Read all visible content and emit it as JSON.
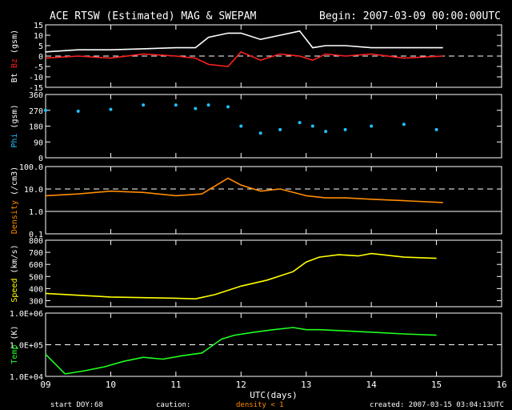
{
  "header": {
    "title": "ACE RTSW (Estimated) MAG & SWEPAM",
    "begin": "Begin: 2007-03-09 00:00:00UTC"
  },
  "footer": {
    "start_doy_label": "start DOY:",
    "start_doy_value": "68",
    "caution_label": "caution:",
    "caution_text": "density < 1",
    "caution_color": "#ff8c00",
    "created": "created: 2007-03-15 03:04:13UTC"
  },
  "colors": {
    "bt": "#ffffff",
    "bz": "#ff2020",
    "phi": "#20c0ff",
    "density": "#ff8c00",
    "speed": "#ffff00",
    "temp": "#20ff20"
  },
  "chart_data": [
    {
      "type": "line",
      "ylabel_parts": [
        "Bt",
        "Bz",
        "(gsm)"
      ],
      "yticks": [
        "15",
        "10",
        "5",
        "0",
        "-5",
        "-10",
        "-15"
      ],
      "ylim": [
        -15,
        15
      ],
      "dashed_reference_y": 0,
      "x": [
        9.0,
        9.5,
        10.0,
        10.5,
        11.0,
        11.3,
        11.5,
        11.8,
        12.0,
        12.3,
        12.6,
        12.9,
        13.1,
        13.3,
        13.6,
        14.0,
        14.5,
        15.1
      ],
      "series": [
        {
          "name": "Bt",
          "values": [
            2,
            3,
            3,
            3.5,
            4,
            4,
            9,
            11,
            11,
            8,
            10,
            12,
            4,
            5,
            5,
            4,
            4,
            4
          ]
        },
        {
          "name": "Bz",
          "values": [
            -1,
            0,
            -1,
            1,
            0,
            -1,
            -4,
            -5,
            2,
            -2,
            1,
            0,
            -2,
            1,
            0,
            1,
            -1,
            0
          ]
        }
      ]
    },
    {
      "type": "scatter",
      "ylabel": "Phi (gsm)",
      "yticks": [
        "360",
        "270",
        "180",
        "90",
        "0"
      ],
      "ylim": [
        0,
        360
      ],
      "x": [
        9.0,
        9.5,
        10.0,
        10.5,
        11.0,
        11.3,
        11.5,
        11.8,
        12.0,
        12.3,
        12.6,
        12.9,
        13.1,
        13.3,
        13.6,
        14.0,
        14.5,
        15.0
      ],
      "series": [
        {
          "name": "Phi",
          "values": [
            270,
            265,
            275,
            300,
            300,
            280,
            300,
            290,
            180,
            140,
            160,
            200,
            180,
            150,
            160,
            180,
            190,
            160
          ]
        }
      ]
    },
    {
      "type": "line",
      "ylabel": "Density (/cm3)",
      "yscale": "log",
      "yticks": [
        "100.0",
        "10.0",
        "1.0",
        "0.1"
      ],
      "ylim": [
        0.1,
        100
      ],
      "dashed_reference_y": 10,
      "solid_reference_y": 1,
      "x": [
        9.0,
        9.5,
        10.0,
        10.5,
        11.0,
        11.4,
        11.8,
        12.0,
        12.3,
        12.6,
        13.0,
        13.3,
        13.6,
        14.0,
        14.5,
        15.1
      ],
      "series": [
        {
          "name": "Density",
          "values": [
            5,
            6,
            8,
            7,
            5,
            6,
            30,
            15,
            8,
            10,
            5,
            4,
            4,
            3.5,
            3,
            2.5
          ]
        }
      ]
    },
    {
      "type": "line",
      "ylabel": "Speed (km/s)",
      "yticks": [
        "800",
        "700",
        "600",
        "500",
        "400",
        "300"
      ],
      "ylim": [
        250,
        800
      ],
      "x": [
        9.0,
        9.5,
        10.0,
        10.5,
        11.0,
        11.3,
        11.6,
        12.0,
        12.4,
        12.8,
        13.0,
        13.2,
        13.5,
        13.8,
        14.0,
        14.5,
        15.0
      ],
      "series": [
        {
          "name": "Speed",
          "values": [
            360,
            345,
            330,
            325,
            320,
            315,
            350,
            420,
            470,
            540,
            620,
            660,
            680,
            670,
            690,
            660,
            650
          ]
        }
      ]
    },
    {
      "type": "line",
      "ylabel": "Temp (K)",
      "yscale": "log",
      "yticks": [
        "1.0E+06",
        "1.0E+05",
        "1.0E+04"
      ],
      "ylim": [
        10000,
        1000000
      ],
      "dashed_reference_y": 100000,
      "x_tick_labels": [
        "09",
        "10",
        "11",
        "12",
        "13",
        "14",
        "15",
        "16"
      ],
      "xlabel": "UTC(days)",
      "xlim": [
        9,
        16
      ],
      "x": [
        9.0,
        9.3,
        9.6,
        9.9,
        10.2,
        10.5,
        10.8,
        11.1,
        11.4,
        11.7,
        11.9,
        12.2,
        12.5,
        12.8,
        13.0,
        13.2,
        13.5,
        14.0,
        14.5,
        15.0
      ],
      "series": [
        {
          "name": "Temp",
          "values": [
            50000,
            12000,
            15000,
            20000,
            30000,
            40000,
            35000,
            45000,
            55000,
            150000,
            200000,
            250000,
            300000,
            350000,
            300000,
            300000,
            280000,
            250000,
            220000,
            200000
          ]
        }
      ]
    }
  ]
}
